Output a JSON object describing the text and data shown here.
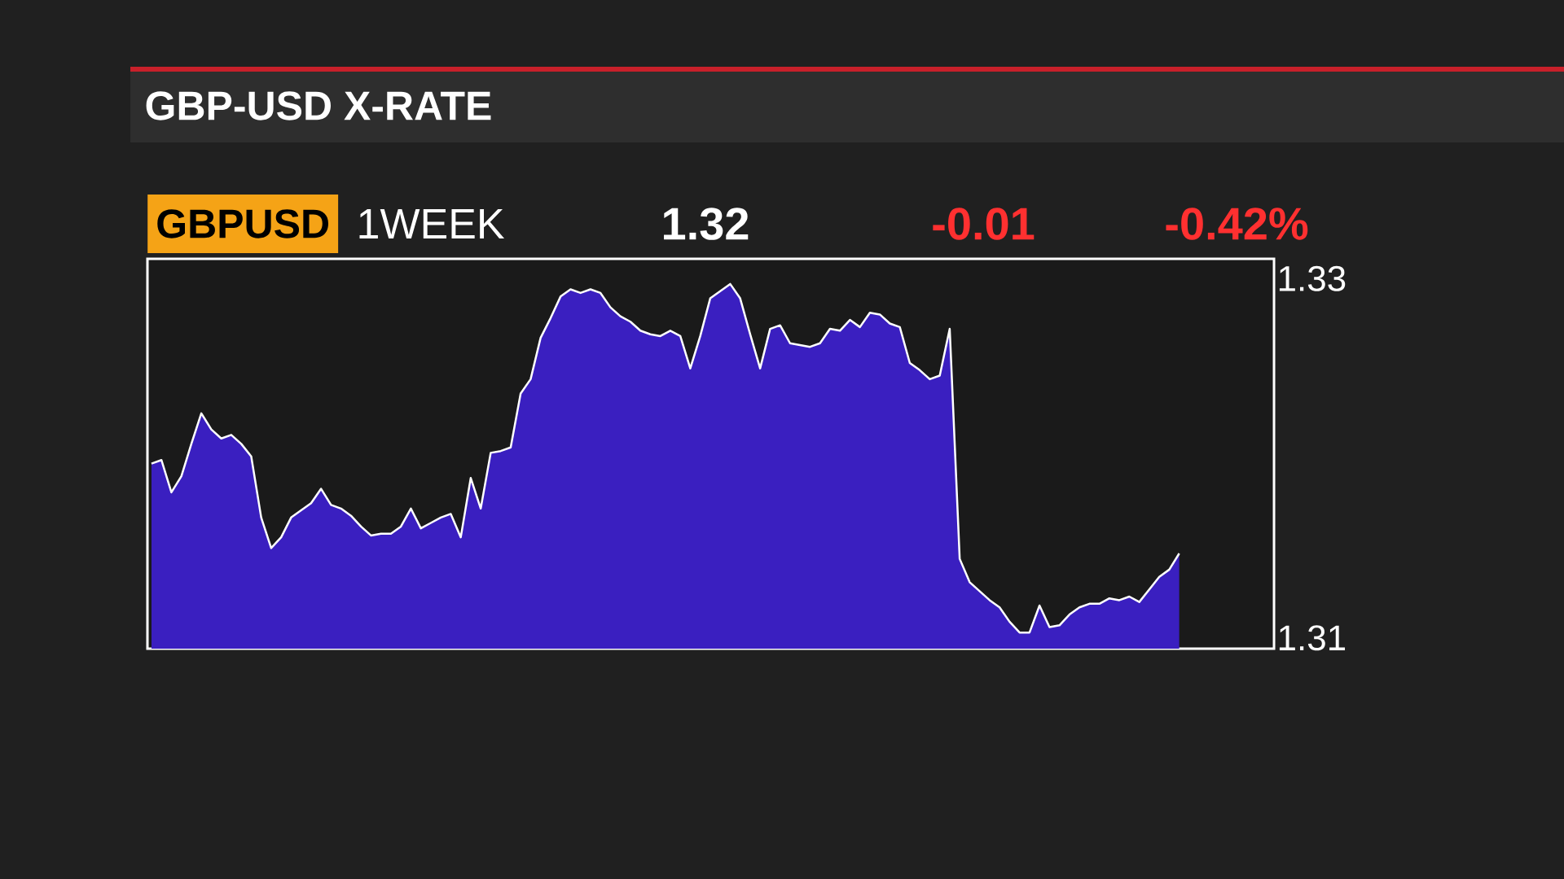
{
  "chart_data": {
    "type": "area",
    "title": "GBP-USD X-RATE",
    "annotations": [
      "GBPUSD",
      "1WEEK",
      "1.32",
      "-0.01",
      "-0.42%"
    ],
    "categories": [
      null,
      null,
      null,
      null,
      null,
      null,
      null,
      null,
      null,
      null,
      null,
      null,
      null,
      null,
      null,
      null,
      null,
      null,
      null,
      null,
      null,
      null,
      null,
      null,
      null,
      null,
      null,
      null,
      null,
      null,
      null,
      null,
      null,
      null,
      null,
      null,
      null,
      null,
      null,
      null,
      null,
      null,
      null,
      null,
      null,
      null,
      null,
      null,
      null,
      null,
      null,
      null,
      null,
      null,
      null,
      null,
      null,
      null,
      null,
      null,
      null,
      null,
      null,
      null,
      null,
      null,
      null,
      null,
      null,
      null,
      null,
      null,
      null,
      null,
      null,
      null,
      null,
      null,
      null,
      null,
      null,
      null,
      null,
      null,
      null,
      null,
      null,
      null,
      null,
      null,
      null,
      null,
      null,
      null,
      null,
      null,
      null,
      null,
      null,
      null,
      null,
      null,
      null,
      null
    ],
    "ylim": [
      1.3094,
      1.3311
    ],
    "yticks": [
      1.31,
      1.33
    ],
    "line_style": "solid",
    "series": [
      {
        "color": "#3a1fc0",
        "values": [
          1.3197,
          1.3199,
          1.3181,
          1.319,
          1.3208,
          1.3225,
          1.3216,
          1.3211,
          1.3213,
          1.3208,
          1.3201,
          1.3167,
          1.315,
          1.3156,
          1.3167,
          1.3171,
          1.3175,
          1.3183,
          1.3174,
          1.3172,
          1.3168,
          1.3162,
          1.3157,
          1.3158,
          1.3158,
          1.3162,
          1.3172,
          1.3161,
          1.3164,
          1.3167,
          1.3169,
          1.3156,
          1.3189,
          1.3172,
          1.3203,
          1.3204,
          1.3206,
          1.3236,
          1.3244,
          1.3267,
          1.3278,
          1.329,
          1.3294,
          1.3292,
          1.3294,
          1.3292,
          1.3284,
          1.3279,
          1.3276,
          1.3271,
          1.3269,
          1.3268,
          1.3271,
          1.3268,
          1.325,
          1.3268,
          1.3289,
          1.3293,
          1.3297,
          1.3289,
          1.3269,
          1.325,
          1.3272,
          1.3274,
          1.3264,
          1.3263,
          1.3262,
          1.3264,
          1.3272,
          1.3271,
          1.3277,
          1.3273,
          1.3281,
          1.328,
          1.3275,
          1.3273,
          1.3253,
          1.3249,
          1.3244,
          1.3246,
          1.3272,
          1.3144,
          1.3131,
          1.3126,
          1.3121,
          1.3117,
          1.3109,
          1.3103,
          1.3103,
          1.3118,
          1.3106,
          1.3107,
          1.3113,
          1.3117,
          1.3119,
          1.3119,
          1.3122,
          1.3121,
          1.3123,
          1.312,
          1.3127,
          1.3134,
          1.3138,
          1.3147
        ]
      }
    ]
  }
}
